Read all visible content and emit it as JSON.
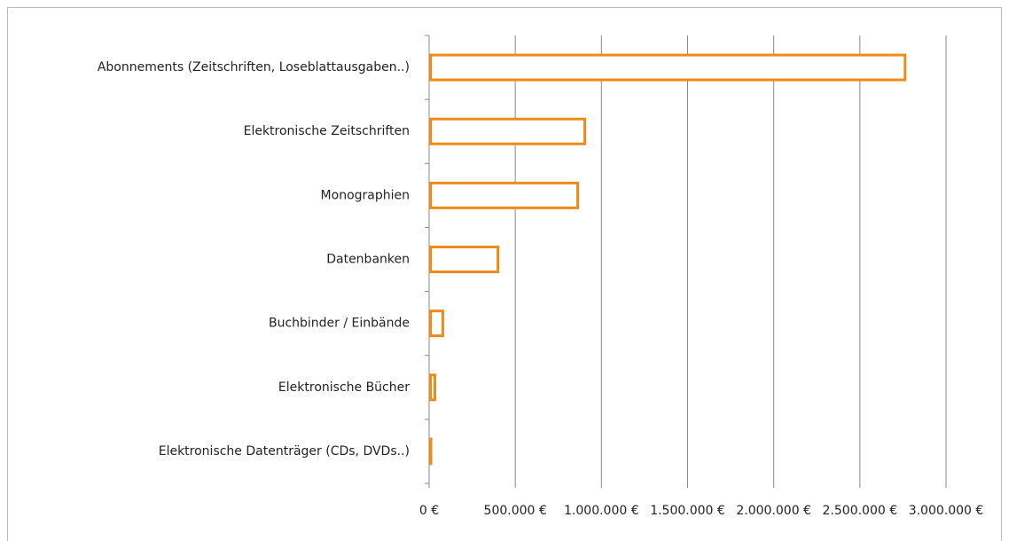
{
  "chart_data": {
    "type": "bar",
    "orientation": "horizontal",
    "categories": [
      "Abonnements (Zeitschriften, Loseblattausgaben..)",
      "Elektronische Zeitschriften",
      "Monographien",
      "Datenbanken",
      "Buchbinder / Einbände",
      "Elektronische Bücher",
      "Elektronische Datenträger (CDs, DVDs..)"
    ],
    "values": [
      2770000,
      911000,
      870000,
      407000,
      87000,
      41000,
      15000
    ],
    "color": "#ef8a17",
    "xlim": [
      0,
      3000000
    ],
    "xticks": [
      {
        "value": 0,
        "label": "0 €"
      },
      {
        "value": 500000,
        "label": "500.000 €"
      },
      {
        "value": 1000000,
        "label": "1.000.000 €"
      },
      {
        "value": 1500000,
        "label": "1.500.000 €"
      },
      {
        "value": 2000000,
        "label": "2.000.000 €"
      },
      {
        "value": 2500000,
        "label": "2.500.000 €"
      },
      {
        "value": 3000000,
        "label": "3.000.000 €"
      }
    ],
    "grid": true
  }
}
